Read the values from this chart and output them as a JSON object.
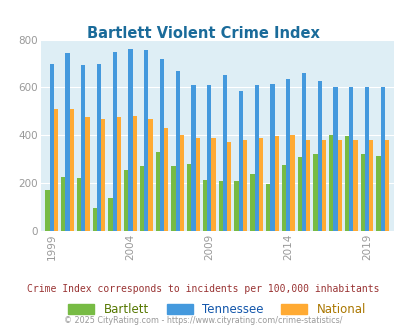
{
  "title": "Bartlett Violent Crime Index",
  "title_color": "#1a6b9a",
  "subtitle": "Crime Index corresponds to incidents per 100,000 inhabitants",
  "subtitle_color": "#993333",
  "copyright": "© 2025 CityRating.com - https://www.cityrating.com/crime-statistics/",
  "copyright_color": "#999999",
  "background_color": "#deeef5",
  "years": [
    1999,
    2000,
    2001,
    2002,
    2003,
    2004,
    2005,
    2006,
    2007,
    2008,
    2009,
    2010,
    2011,
    2012,
    2013,
    2014,
    2015,
    2016,
    2017,
    2018,
    2019,
    2020
  ],
  "bartlett": [
    170,
    225,
    220,
    95,
    140,
    255,
    270,
    330,
    270,
    280,
    215,
    210,
    210,
    240,
    195,
    275,
    310,
    320,
    400,
    395,
    320,
    315
  ],
  "tennessee": [
    700,
    745,
    695,
    700,
    750,
    760,
    755,
    720,
    670,
    610,
    610,
    650,
    585,
    610,
    615,
    635,
    660,
    625,
    600,
    600,
    600,
    600
  ],
  "national": [
    510,
    510,
    475,
    470,
    475,
    480,
    470,
    430,
    400,
    390,
    390,
    370,
    380,
    390,
    395,
    400,
    380,
    380,
    380,
    380,
    380,
    380
  ],
  "bar_colors": [
    "#77bb44",
    "#4499dd",
    "#ffaa33"
  ],
  "legend_labels": [
    "Bartlett",
    "Tennessee",
    "National"
  ],
  "legend_text_colors": [
    "#557700",
    "#1155aa",
    "#aa7700"
  ],
  "ylim": [
    0,
    800
  ],
  "yticks": [
    0,
    200,
    400,
    600,
    800
  ],
  "xtick_years": [
    1999,
    2004,
    2009,
    2014,
    2019
  ],
  "bar_width": 0.27,
  "figsize": [
    4.06,
    3.3
  ],
  "dpi": 100
}
